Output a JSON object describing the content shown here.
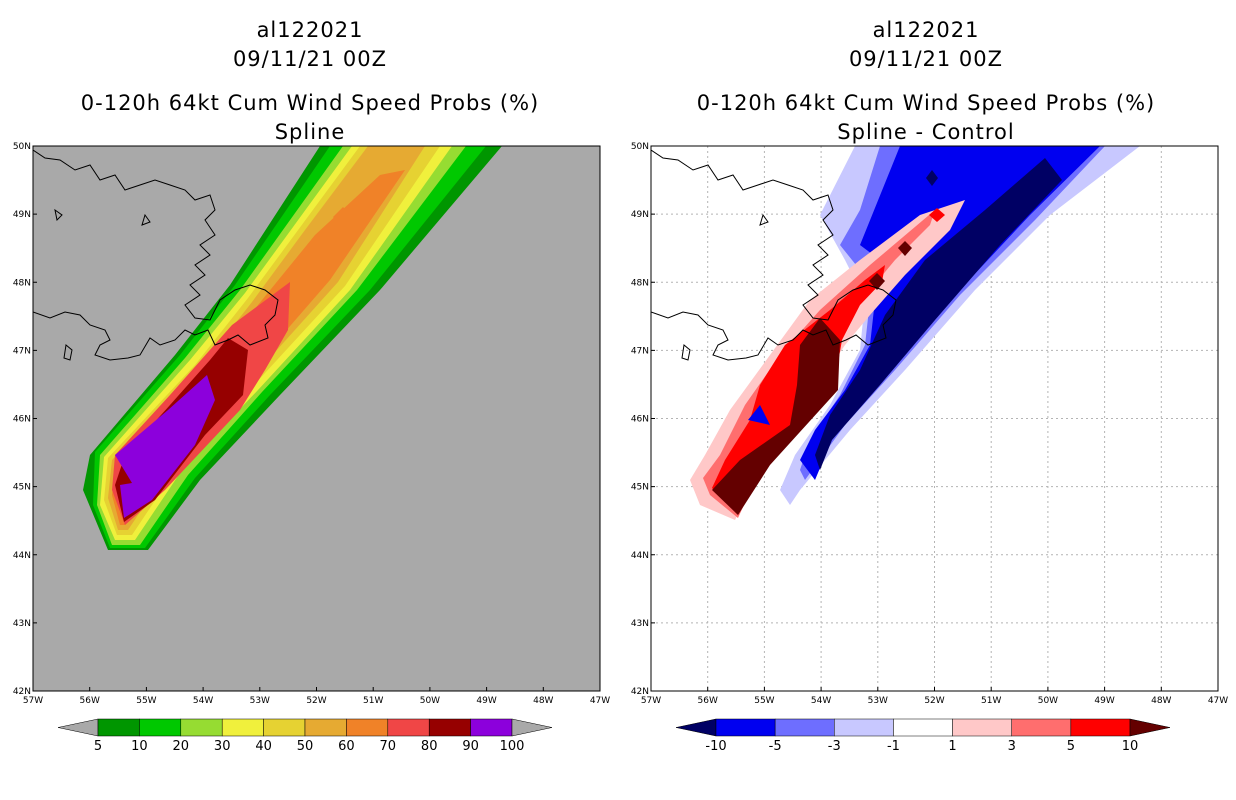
{
  "chart_data": [
    {
      "type": "filled-contour-map",
      "storm_id": "al122021",
      "date": "09/11/21 00Z",
      "title": "0-120h 64kt Cum Wind Speed Probs (%)",
      "subtitle": "Spline",
      "xlim": [
        -57,
        -47
      ],
      "ylim": [
        42,
        50
      ],
      "x_ticks": [
        "57W",
        "56W",
        "55W",
        "54W",
        "53W",
        "52W",
        "51W",
        "50W",
        "49W",
        "48W",
        "47W"
      ],
      "y_ticks": [
        "42N",
        "43N",
        "44N",
        "45N",
        "46N",
        "47N",
        "48N",
        "49N",
        "50N"
      ],
      "background_color": "#a9a9a9",
      "colorbar": {
        "ticks": [
          "5",
          "10",
          "20",
          "30",
          "40",
          "50",
          "60",
          "70",
          "80",
          "90",
          "100"
        ],
        "colors": [
          "#a9a9a9",
          "#009600",
          "#00c800",
          "#96dc32",
          "#f0f03c",
          "#e6d232",
          "#e6aa32",
          "#f08228",
          "#f04646",
          "#960000",
          "#8c00dc",
          "#a9a9a9"
        ]
      },
      "contours": [
        {
          "level": 5,
          "color": "#009600"
        },
        {
          "level": 10,
          "color": "#00c800"
        },
        {
          "level": 20,
          "color": "#96dc32"
        },
        {
          "level": 30,
          "color": "#f0f03c"
        },
        {
          "level": 40,
          "color": "#e6d232"
        },
        {
          "level": 50,
          "color": "#e6aa32"
        },
        {
          "level": 60,
          "color": "#f08228"
        },
        {
          "level": 70,
          "color": "#f04646"
        },
        {
          "level": 80,
          "color": "#960000"
        },
        {
          "level": 90,
          "color": "#8c00dc"
        }
      ]
    },
    {
      "type": "filled-contour-map",
      "storm_id": "al122021",
      "date": "09/11/21 00Z",
      "title": "0-120h 64kt Cum Wind Speed Probs (%)",
      "subtitle": "Spline - Control",
      "xlim": [
        -57,
        -47
      ],
      "ylim": [
        42,
        50
      ],
      "x_ticks": [
        "57W",
        "56W",
        "55W",
        "54W",
        "53W",
        "52W",
        "51W",
        "50W",
        "49W",
        "48W",
        "47W"
      ],
      "y_ticks": [
        "42N",
        "43N",
        "44N",
        "45N",
        "46N",
        "47N",
        "48N",
        "49N",
        "50N"
      ],
      "background_color": "#ffffff",
      "colorbar": {
        "ticks": [
          "-10",
          "-5",
          "-3",
          "-1",
          "1",
          "3",
          "5",
          "10"
        ],
        "colors": [
          "#000064",
          "#0000f0",
          "#6e6eff",
          "#c8c8ff",
          "#ffffff",
          "#ffc8c8",
          "#ff6e6e",
          "#ff0000",
          "#640000"
        ]
      }
    }
  ]
}
